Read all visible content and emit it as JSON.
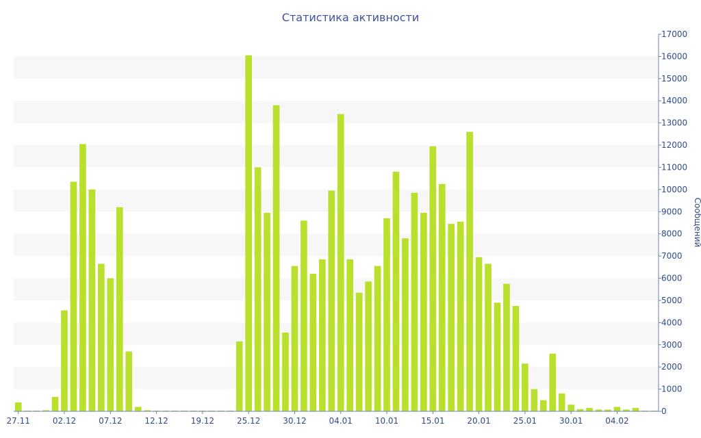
{
  "chart_data": {
    "type": "bar",
    "title": "Статистика активности",
    "xlabel": "",
    "ylabel": "Сообщений",
    "ylim": [
      0,
      17000
    ],
    "yticks": [
      0,
      1000,
      2000,
      3000,
      4000,
      5000,
      6000,
      7000,
      8000,
      9000,
      10000,
      11000,
      12000,
      13000,
      14000,
      15000,
      16000,
      17000
    ],
    "xtick_labels": [
      {
        "index": 0,
        "label": "27.11"
      },
      {
        "index": 5,
        "label": "02.12"
      },
      {
        "index": 10,
        "label": "07.12"
      },
      {
        "index": 15,
        "label": "12.12"
      },
      {
        "index": 20,
        "label": "19.12"
      },
      {
        "index": 25,
        "label": "25.12"
      },
      {
        "index": 30,
        "label": "30.12"
      },
      {
        "index": 35,
        "label": "04.01"
      },
      {
        "index": 40,
        "label": "10.01"
      },
      {
        "index": 45,
        "label": "15.01"
      },
      {
        "index": 50,
        "label": "20.01"
      },
      {
        "index": 55,
        "label": "25.01"
      },
      {
        "index": 60,
        "label": "30.01"
      },
      {
        "index": 65,
        "label": "04.02"
      }
    ],
    "values": [
      400,
      30,
      30,
      50,
      650,
      4550,
      10350,
      12050,
      10000,
      6650,
      6000,
      9200,
      2700,
      200,
      50,
      30,
      30,
      30,
      30,
      30,
      30,
      30,
      30,
      30,
      3150,
      16050,
      11000,
      8950,
      13800,
      3550,
      6550,
      8600,
      6200,
      6850,
      9950,
      13400,
      6850,
      5350,
      5850,
      6550,
      8700,
      10800,
      7800,
      9850,
      8950,
      11950,
      10250,
      8450,
      8550,
      12600,
      6950,
      6650,
      4900,
      5750,
      4750,
      2150,
      1000,
      500,
      2600,
      800,
      300,
      100,
      150,
      80,
      80,
      200,
      80,
      150,
      30,
      30
    ],
    "grid": "alternating horizontal bands",
    "colors": {
      "bar": "#b8e02c",
      "band": "#f7f7f7",
      "text": "#2f4a8a"
    }
  }
}
